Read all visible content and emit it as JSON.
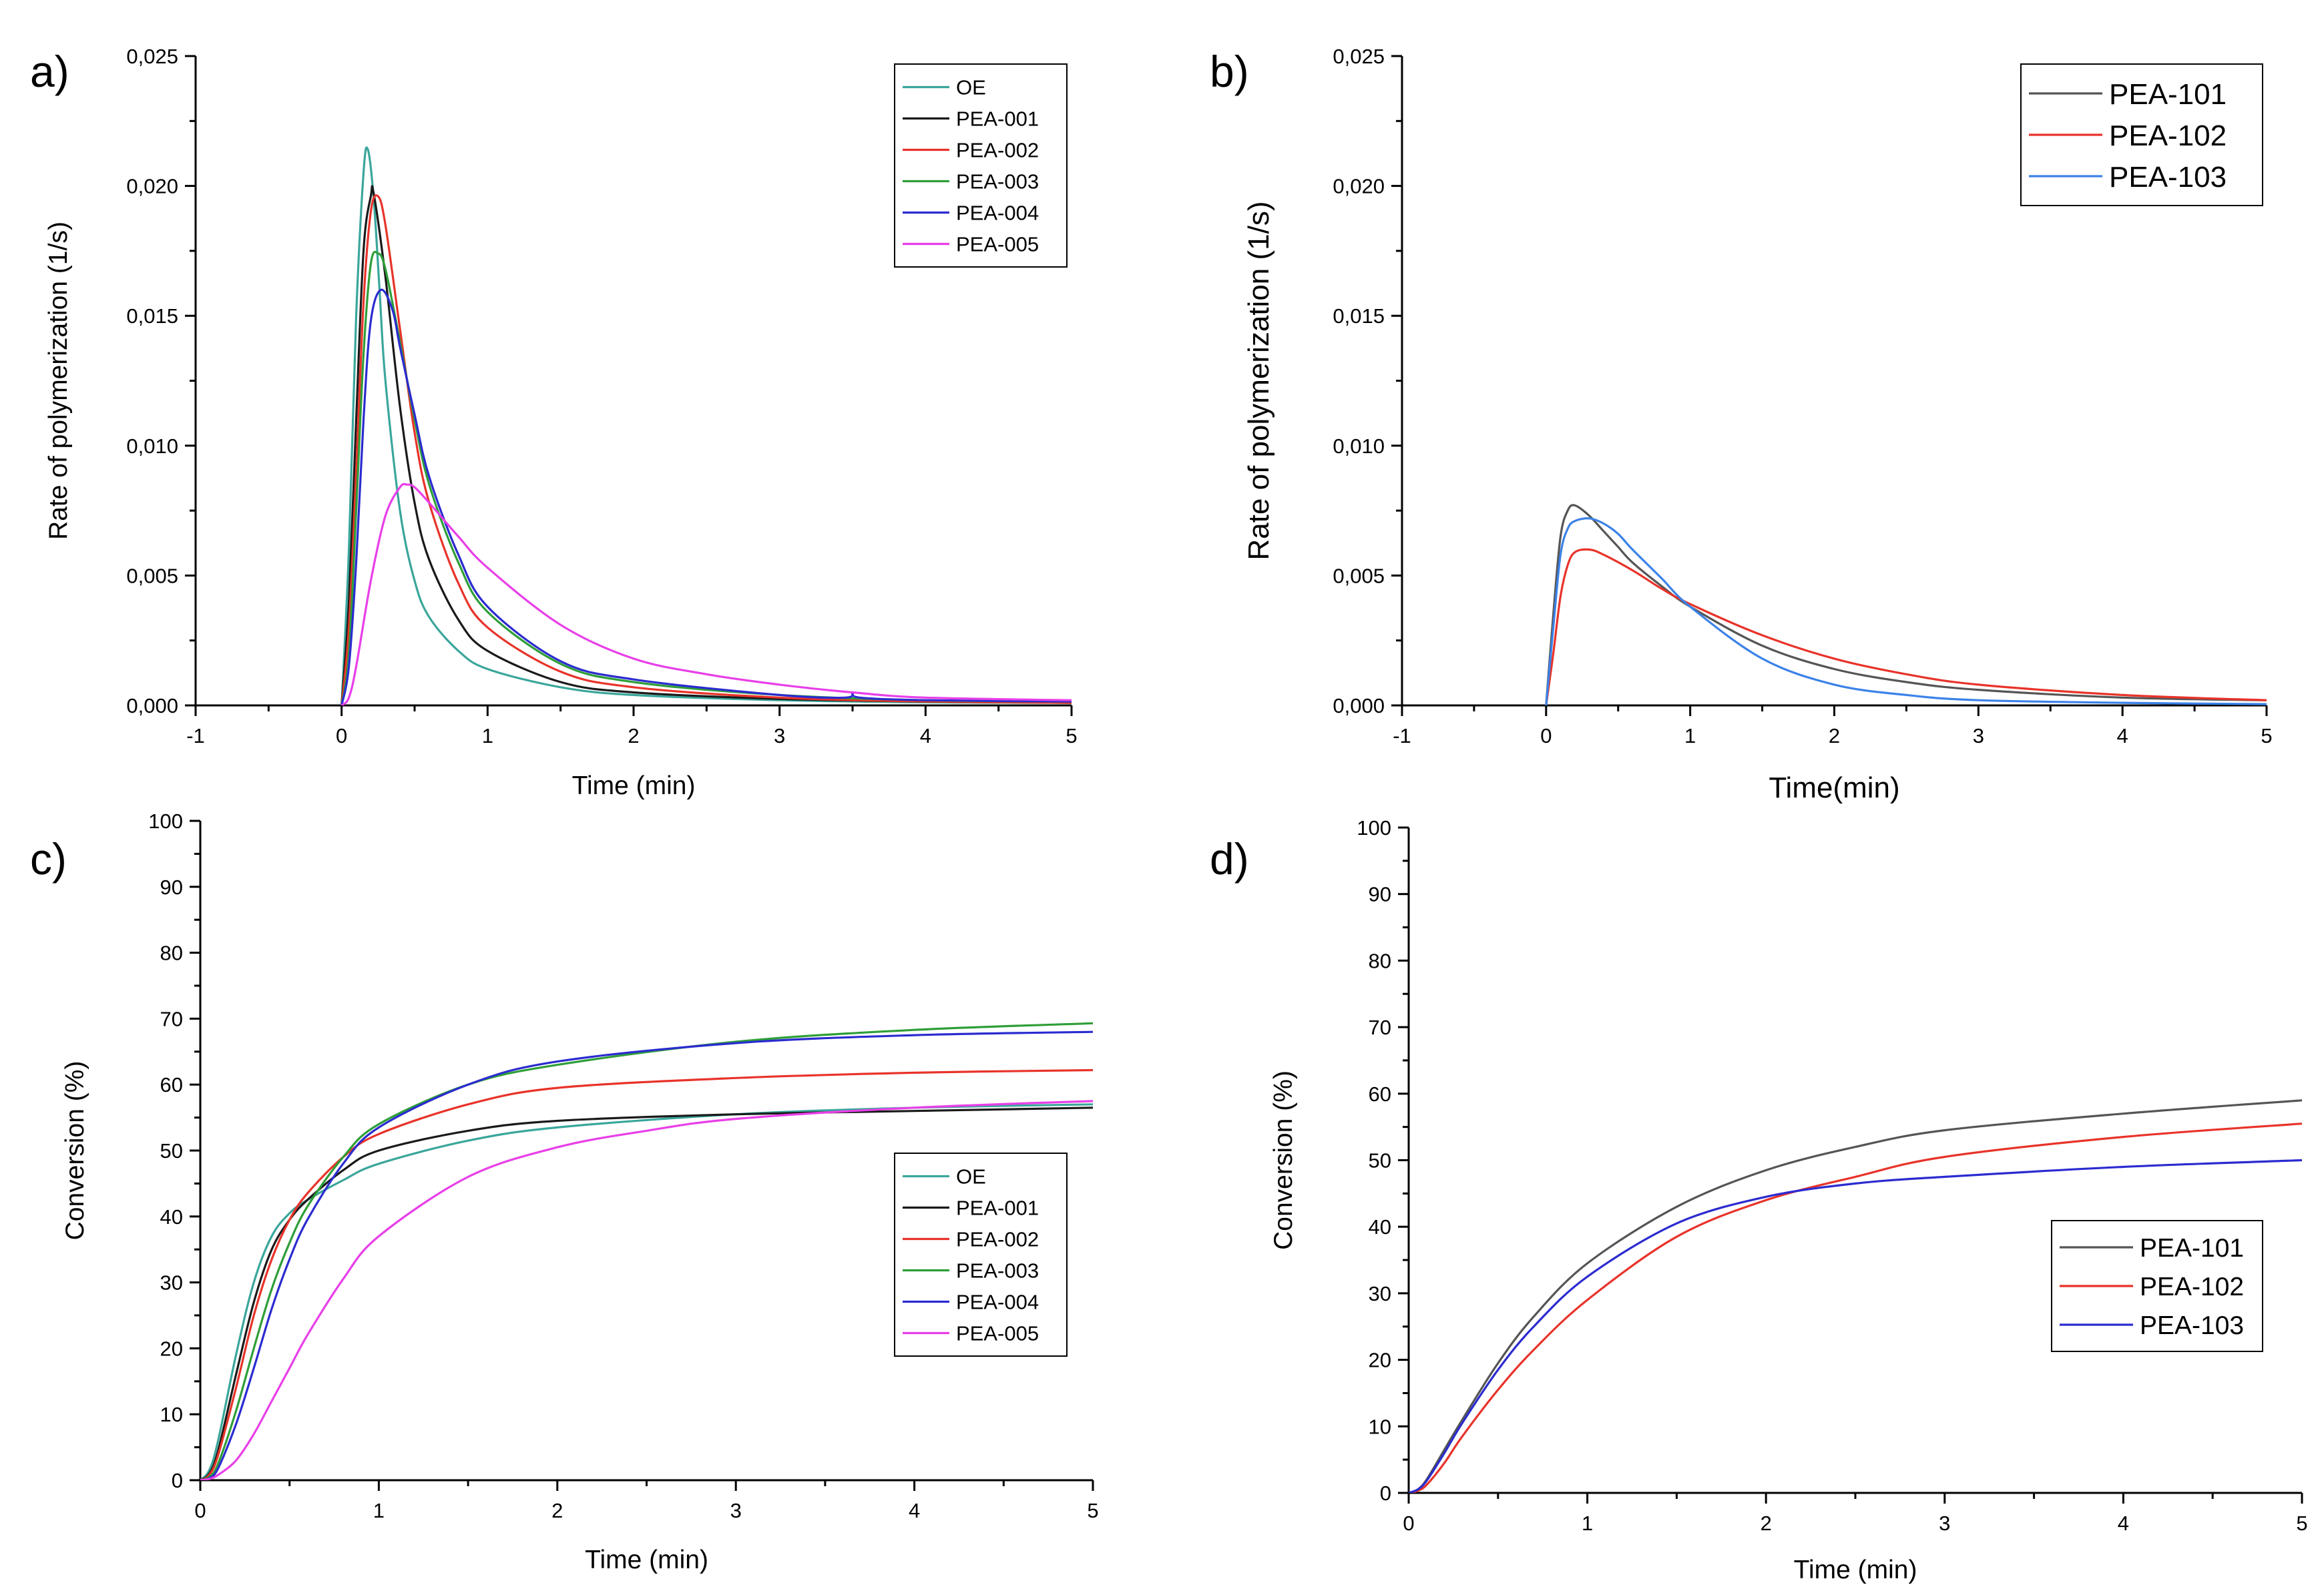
{
  "chart_data": [
    {
      "panel": "a)",
      "type": "line",
      "xlabel": "Time (min)",
      "ylabel": "Rate of polymerization (1/s)",
      "xlim": [
        -1,
        5
      ],
      "ylim": [
        0,
        0.025
      ],
      "xticks": [
        -1,
        0,
        1,
        2,
        3,
        4,
        5
      ],
      "xtick_labels": [
        "-1",
        "0",
        "1",
        "2",
        "3",
        "4",
        "5"
      ],
      "yticks": [
        0,
        0.005,
        0.01,
        0.015,
        0.02,
        0.025
      ],
      "ytick_labels": [
        "0,000",
        "0,005",
        "0,010",
        "0,015",
        "0,020",
        "0,025"
      ],
      "legend_position": "top-right",
      "series": [
        {
          "name": "OE",
          "color": "#3aa69b",
          "x": [
            0,
            0.05,
            0.1,
            0.15,
            0.18,
            0.22,
            0.26,
            0.3,
            0.4,
            0.5,
            0.6,
            0.8,
            1.0,
            1.5,
            2.0,
            3.0,
            4.0,
            5.0
          ],
          "y": [
            0,
            0.006,
            0.015,
            0.0205,
            0.0214,
            0.0195,
            0.016,
            0.0125,
            0.0075,
            0.0048,
            0.0034,
            0.0021,
            0.0014,
            0.0007,
            0.0004,
            0.0002,
            0.00012,
            0.0001
          ]
        },
        {
          "name": "PEA-001",
          "color": "#1a1a1a",
          "x": [
            0,
            0.05,
            0.1,
            0.15,
            0.2,
            0.22,
            0.3,
            0.4,
            0.5,
            0.6,
            0.8,
            1.0,
            1.5,
            2.0,
            3.0,
            4.0,
            5.0
          ],
          "y": [
            0,
            0.004,
            0.011,
            0.0175,
            0.0196,
            0.0197,
            0.0165,
            0.0115,
            0.0078,
            0.0056,
            0.0033,
            0.0021,
            0.0009,
            0.0005,
            0.00025,
            0.00015,
            0.0001
          ]
        },
        {
          "name": "PEA-002",
          "color": "#e8332a",
          "x": [
            0,
            0.05,
            0.1,
            0.15,
            0.2,
            0.25,
            0.3,
            0.4,
            0.5,
            0.6,
            0.8,
            1.0,
            1.5,
            2.0,
            3.0,
            4.0,
            5.0
          ],
          "y": [
            0,
            0.003,
            0.009,
            0.0155,
            0.019,
            0.0196,
            0.0185,
            0.0145,
            0.0105,
            0.0078,
            0.0047,
            0.003,
            0.0013,
            0.0007,
            0.0003,
            0.00015,
            0.0001
          ]
        },
        {
          "name": "PEA-003",
          "color": "#2e9e38",
          "x": [
            0,
            0.05,
            0.1,
            0.15,
            0.2,
            0.25,
            0.3,
            0.4,
            0.5,
            0.6,
            0.8,
            1.0,
            1.5,
            2.0,
            3.0,
            4.0,
            5.0
          ],
          "y": [
            0,
            0.002,
            0.0075,
            0.0135,
            0.017,
            0.0174,
            0.0168,
            0.014,
            0.011,
            0.0085,
            0.0055,
            0.0036,
            0.0016,
            0.0009,
            0.0004,
            0.0002,
            0.00015
          ]
        },
        {
          "name": "PEA-004",
          "color": "#2b2bd0",
          "x": [
            0,
            0.05,
            0.1,
            0.15,
            0.2,
            0.27,
            0.35,
            0.4,
            0.5,
            0.6,
            0.8,
            1.0,
            1.5,
            2.0,
            3.0,
            3.45,
            3.5,
            3.55,
            4.0,
            5.0
          ],
          "y": [
            0,
            0.0015,
            0.0055,
            0.011,
            0.0148,
            0.016,
            0.0152,
            0.0138,
            0.0112,
            0.0088,
            0.0058,
            0.0038,
            0.0017,
            0.001,
            0.0004,
            0.0003,
            0.0005,
            0.0003,
            0.0002,
            0.00015
          ]
        },
        {
          "name": "PEA-005",
          "color": "#e83fe8",
          "x": [
            0,
            0.05,
            0.1,
            0.2,
            0.3,
            0.4,
            0.45,
            0.5,
            0.6,
            0.8,
            1.0,
            1.5,
            2.0,
            2.5,
            3.0,
            3.5,
            4.0,
            5.0
          ],
          "y": [
            0,
            0.0003,
            0.0015,
            0.0048,
            0.0073,
            0.0084,
            0.0085,
            0.0084,
            0.0078,
            0.0065,
            0.0053,
            0.0031,
            0.0018,
            0.0012,
            0.0008,
            0.0005,
            0.0003,
            0.0002
          ]
        }
      ]
    },
    {
      "panel": "b)",
      "type": "line",
      "xlabel": "Time(min)",
      "ylabel": "Rate of polymerization (1/s)",
      "xlim": [
        -1,
        5
      ],
      "ylim": [
        0,
        0.025
      ],
      "xticks": [
        -1,
        0,
        1,
        2,
        3,
        4,
        5
      ],
      "xtick_labels": [
        "-1",
        "0",
        "1",
        "2",
        "3",
        "4",
        "5"
      ],
      "yticks": [
        0,
        0.005,
        0.01,
        0.015,
        0.02,
        0.025
      ],
      "ytick_labels": [
        "0,000",
        "0,005",
        "0,010",
        "0,015",
        "0,020",
        "0,025"
      ],
      "legend_position": "top-right",
      "series": [
        {
          "name": "PEA-101",
          "color": "#555555",
          "x": [
            0,
            0.05,
            0.1,
            0.15,
            0.2,
            0.3,
            0.4,
            0.5,
            0.6,
            0.8,
            1.0,
            1.5,
            2.0,
            2.5,
            3.0,
            4.0,
            5.0
          ],
          "y": [
            0,
            0.0035,
            0.0065,
            0.0075,
            0.0077,
            0.0073,
            0.0067,
            0.0061,
            0.0055,
            0.0046,
            0.0038,
            0.0023,
            0.0014,
            0.0009,
            0.0006,
            0.0003,
            0.0002
          ]
        },
        {
          "name": "PEA-102",
          "color": "#e8332a",
          "x": [
            0,
            0.05,
            0.1,
            0.15,
            0.2,
            0.3,
            0.4,
            0.6,
            0.8,
            1.0,
            1.5,
            2.0,
            2.5,
            3.0,
            4.0,
            5.0
          ],
          "y": [
            0,
            0.002,
            0.0042,
            0.0054,
            0.0059,
            0.006,
            0.0058,
            0.0052,
            0.0045,
            0.0039,
            0.0027,
            0.0018,
            0.0012,
            0.0008,
            0.0004,
            0.0002
          ]
        },
        {
          "name": "PEA-103",
          "color": "#3b82e8",
          "x": [
            0,
            0.05,
            0.1,
            0.15,
            0.2,
            0.3,
            0.4,
            0.5,
            0.6,
            0.8,
            1.0,
            1.5,
            2.0,
            2.5,
            3.0,
            4.0,
            5.0
          ],
          "y": [
            0,
            0.003,
            0.0058,
            0.0068,
            0.0071,
            0.0072,
            0.007,
            0.0066,
            0.006,
            0.0049,
            0.0038,
            0.0018,
            0.0008,
            0.0004,
            0.0002,
            0.0001,
            5e-05
          ]
        }
      ]
    },
    {
      "panel": "c)",
      "type": "line",
      "xlabel": "Time (min)",
      "ylabel": "Conversion (%)",
      "xlim": [
        0,
        5
      ],
      "ylim": [
        0,
        100
      ],
      "xticks": [
        0,
        1,
        2,
        3,
        4,
        5
      ],
      "xtick_labels": [
        "0",
        "1",
        "2",
        "3",
        "4",
        "5"
      ],
      "yticks": [
        0,
        10,
        20,
        30,
        40,
        50,
        60,
        70,
        80,
        90,
        100
      ],
      "ytick_labels": [
        "0",
        "10",
        "20",
        "30",
        "40",
        "50",
        "60",
        "70",
        "80",
        "90",
        "100"
      ],
      "legend_position": "bottom-right",
      "series": [
        {
          "name": "OE",
          "color": "#3aa69b",
          "x": [
            0,
            0.05,
            0.1,
            0.2,
            0.3,
            0.4,
            0.5,
            0.6,
            0.8,
            1.0,
            1.5,
            2.0,
            3.0,
            4.0,
            5.0
          ],
          "y": [
            0,
            1.5,
            6,
            19,
            30,
            37,
            40.5,
            42.5,
            45.5,
            48,
            51.5,
            53.5,
            55.5,
            56.5,
            57
          ]
        },
        {
          "name": "PEA-001",
          "color": "#1a1a1a",
          "x": [
            0,
            0.05,
            0.1,
            0.2,
            0.3,
            0.4,
            0.5,
            0.6,
            0.8,
            1.0,
            1.5,
            2.0,
            3.0,
            4.0,
            5.0
          ],
          "y": [
            0,
            1,
            4.5,
            16,
            27,
            35,
            39.5,
            42.5,
            47,
            50,
            53,
            54.5,
            55.5,
            56,
            56.5
          ]
        },
        {
          "name": "PEA-002",
          "color": "#e8332a",
          "x": [
            0,
            0.05,
            0.1,
            0.2,
            0.3,
            0.4,
            0.5,
            0.6,
            0.8,
            1.0,
            1.5,
            2.0,
            3.0,
            4.0,
            5.0
          ],
          "y": [
            0,
            0.8,
            3.8,
            14,
            25,
            33.5,
            39.5,
            43.5,
            49,
            52.5,
            57,
            59.5,
            61,
            61.8,
            62.2
          ]
        },
        {
          "name": "PEA-003",
          "color": "#2e9e38",
          "x": [
            0,
            0.05,
            0.1,
            0.2,
            0.3,
            0.4,
            0.5,
            0.6,
            0.8,
            1.0,
            1.5,
            2.0,
            3.0,
            4.0,
            5.0
          ],
          "y": [
            0,
            0.5,
            2.5,
            10.5,
            20,
            29,
            36,
            41.5,
            49,
            54,
            60,
            63,
            66.5,
            68.3,
            69.3
          ]
        },
        {
          "name": "PEA-004",
          "color": "#2b2bd0",
          "x": [
            0,
            0.05,
            0.1,
            0.2,
            0.3,
            0.4,
            0.5,
            0.6,
            0.8,
            1.0,
            1.5,
            2.0,
            3.0,
            4.0,
            5.0
          ],
          "y": [
            0,
            0.3,
            1.8,
            8.5,
            17,
            26,
            33.5,
            39.5,
            48,
            53.5,
            60,
            63.5,
            66.3,
            67.5,
            68
          ]
        },
        {
          "name": "PEA-005",
          "color": "#e83fe8",
          "x": [
            0,
            0.05,
            0.1,
            0.2,
            0.3,
            0.4,
            0.5,
            0.6,
            0.8,
            1.0,
            1.5,
            2.0,
            2.5,
            3.0,
            4.0,
            5.0
          ],
          "y": [
            0,
            0.2,
            0.8,
            3,
            7,
            12,
            17,
            22,
            30.5,
            37,
            46,
            50.5,
            53,
            54.8,
            56.5,
            57.5
          ]
        }
      ]
    },
    {
      "panel": "d)",
      "type": "line",
      "xlabel": "Time (min)",
      "ylabel": "Conversion (%)",
      "xlim": [
        0,
        5
      ],
      "ylim": [
        0,
        100
      ],
      "xticks": [
        0,
        1,
        2,
        3,
        4,
        5
      ],
      "xtick_labels": [
        "0",
        "1",
        "2",
        "3",
        "4",
        "5"
      ],
      "yticks": [
        0,
        10,
        20,
        30,
        40,
        50,
        60,
        70,
        80,
        90,
        100
      ],
      "ytick_labels": [
        "0",
        "10",
        "20",
        "30",
        "40",
        "50",
        "60",
        "70",
        "80",
        "90",
        "100"
      ],
      "legend_position": "bottom-right",
      "series": [
        {
          "name": "PEA-101",
          "color": "#555555",
          "x": [
            0,
            0.05,
            0.1,
            0.2,
            0.3,
            0.5,
            0.7,
            1.0,
            1.5,
            2.0,
            2.5,
            3.0,
            4.0,
            5.0
          ],
          "y": [
            0,
            0.5,
            2,
            6.5,
            11,
            19.5,
            26.5,
            34.5,
            43,
            48.5,
            52,
            54.5,
            57,
            59
          ]
        },
        {
          "name": "PEA-102",
          "color": "#e8332a",
          "x": [
            0,
            0.05,
            0.1,
            0.2,
            0.3,
            0.5,
            0.7,
            1.0,
            1.5,
            2.0,
            2.5,
            3.0,
            4.0,
            5.0
          ],
          "y": [
            0,
            0.3,
            1.2,
            4.5,
            8.5,
            15.5,
            21.5,
            29,
            38.5,
            44,
            47.5,
            50.5,
            53.5,
            55.5
          ]
        },
        {
          "name": "PEA-103",
          "color": "#2b2bd0",
          "x": [
            0,
            0.05,
            0.1,
            0.2,
            0.3,
            0.5,
            0.7,
            1.0,
            1.5,
            2.0,
            2.5,
            3.0,
            4.0,
            5.0
          ],
          "y": [
            0,
            0.5,
            1.8,
            6,
            10.5,
            18.5,
            25,
            32.5,
            40.5,
            44.5,
            46.5,
            47.5,
            49,
            50
          ]
        }
      ]
    }
  ]
}
